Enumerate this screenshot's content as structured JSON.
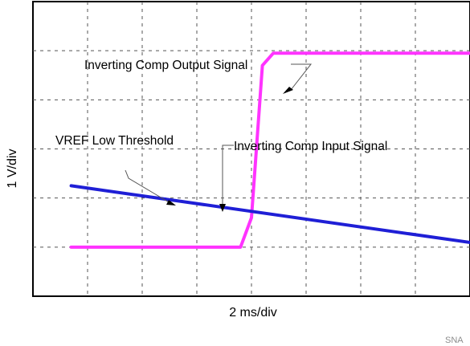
{
  "chart_data": {
    "type": "line",
    "x_unit_label": "2 ms/div",
    "y_unit_label": "1 V/div",
    "grid": true,
    "grid_style": "dashed",
    "divisions": {
      "x": 8,
      "y": 6
    },
    "series": [
      {
        "name": "Inverting Comp Output Signal",
        "color": "#ff33ff",
        "points": [
          [
            0.7,
            1.0
          ],
          [
            3.8,
            1.0
          ],
          [
            4.0,
            1.6
          ],
          [
            4.2,
            4.7
          ],
          [
            4.4,
            4.95
          ],
          [
            8.6,
            4.95
          ]
        ]
      },
      {
        "name": "Inverting Comp Input Signal",
        "color": "#1f1fd6",
        "points": [
          [
            0.7,
            2.25
          ],
          [
            8.6,
            1.0
          ]
        ]
      }
    ],
    "annotations": [
      {
        "id": "output",
        "text": "Inverting Comp Output Signal"
      },
      {
        "id": "vref",
        "text": "VREF Low Threshold"
      },
      {
        "id": "input",
        "text": "Inverting Comp Input Signal"
      }
    ]
  },
  "watermark": "SNA"
}
